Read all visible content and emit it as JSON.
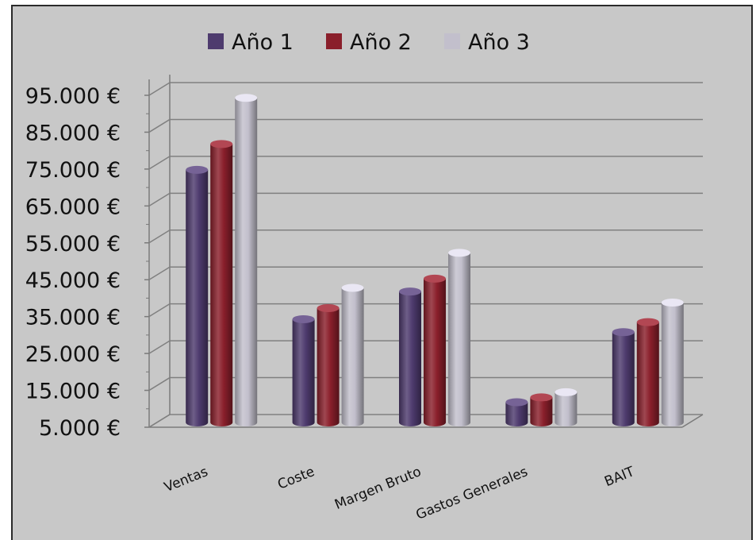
{
  "chart_data": {
    "type": "bar",
    "style": "3d-cylinder",
    "title": "",
    "xlabel": "",
    "ylabel": "",
    "categories": [
      "Ventas",
      "Coste",
      "Margen Bruto",
      "Gastos Generales",
      "BAIT"
    ],
    "series": [
      {
        "name": "Año 1",
        "color": "#4e3b6e",
        "values": [
          73500,
          33000,
          40500,
          10500,
          29500
        ]
      },
      {
        "name": "Año 2",
        "color": "#8a1f2b",
        "values": [
          80500,
          36000,
          44000,
          11800,
          32200
        ]
      },
      {
        "name": "Año 3",
        "color": "#c2bfcc",
        "values": [
          93000,
          41500,
          51000,
          13200,
          37500
        ]
      }
    ],
    "ylim": [
      5000,
      95000
    ],
    "yticks": [
      "95.000 €",
      "85.000 €",
      "75.000 €",
      "65.000 €",
      "55.000 €",
      "45.000 €",
      "35.000 €",
      "25.000 €",
      "15.000 €",
      "5.000 €"
    ],
    "ytick_values": [
      95000,
      85000,
      75000,
      65000,
      55000,
      45000,
      35000,
      25000,
      15000,
      5000
    ],
    "grid": true,
    "legend_position": "top"
  }
}
